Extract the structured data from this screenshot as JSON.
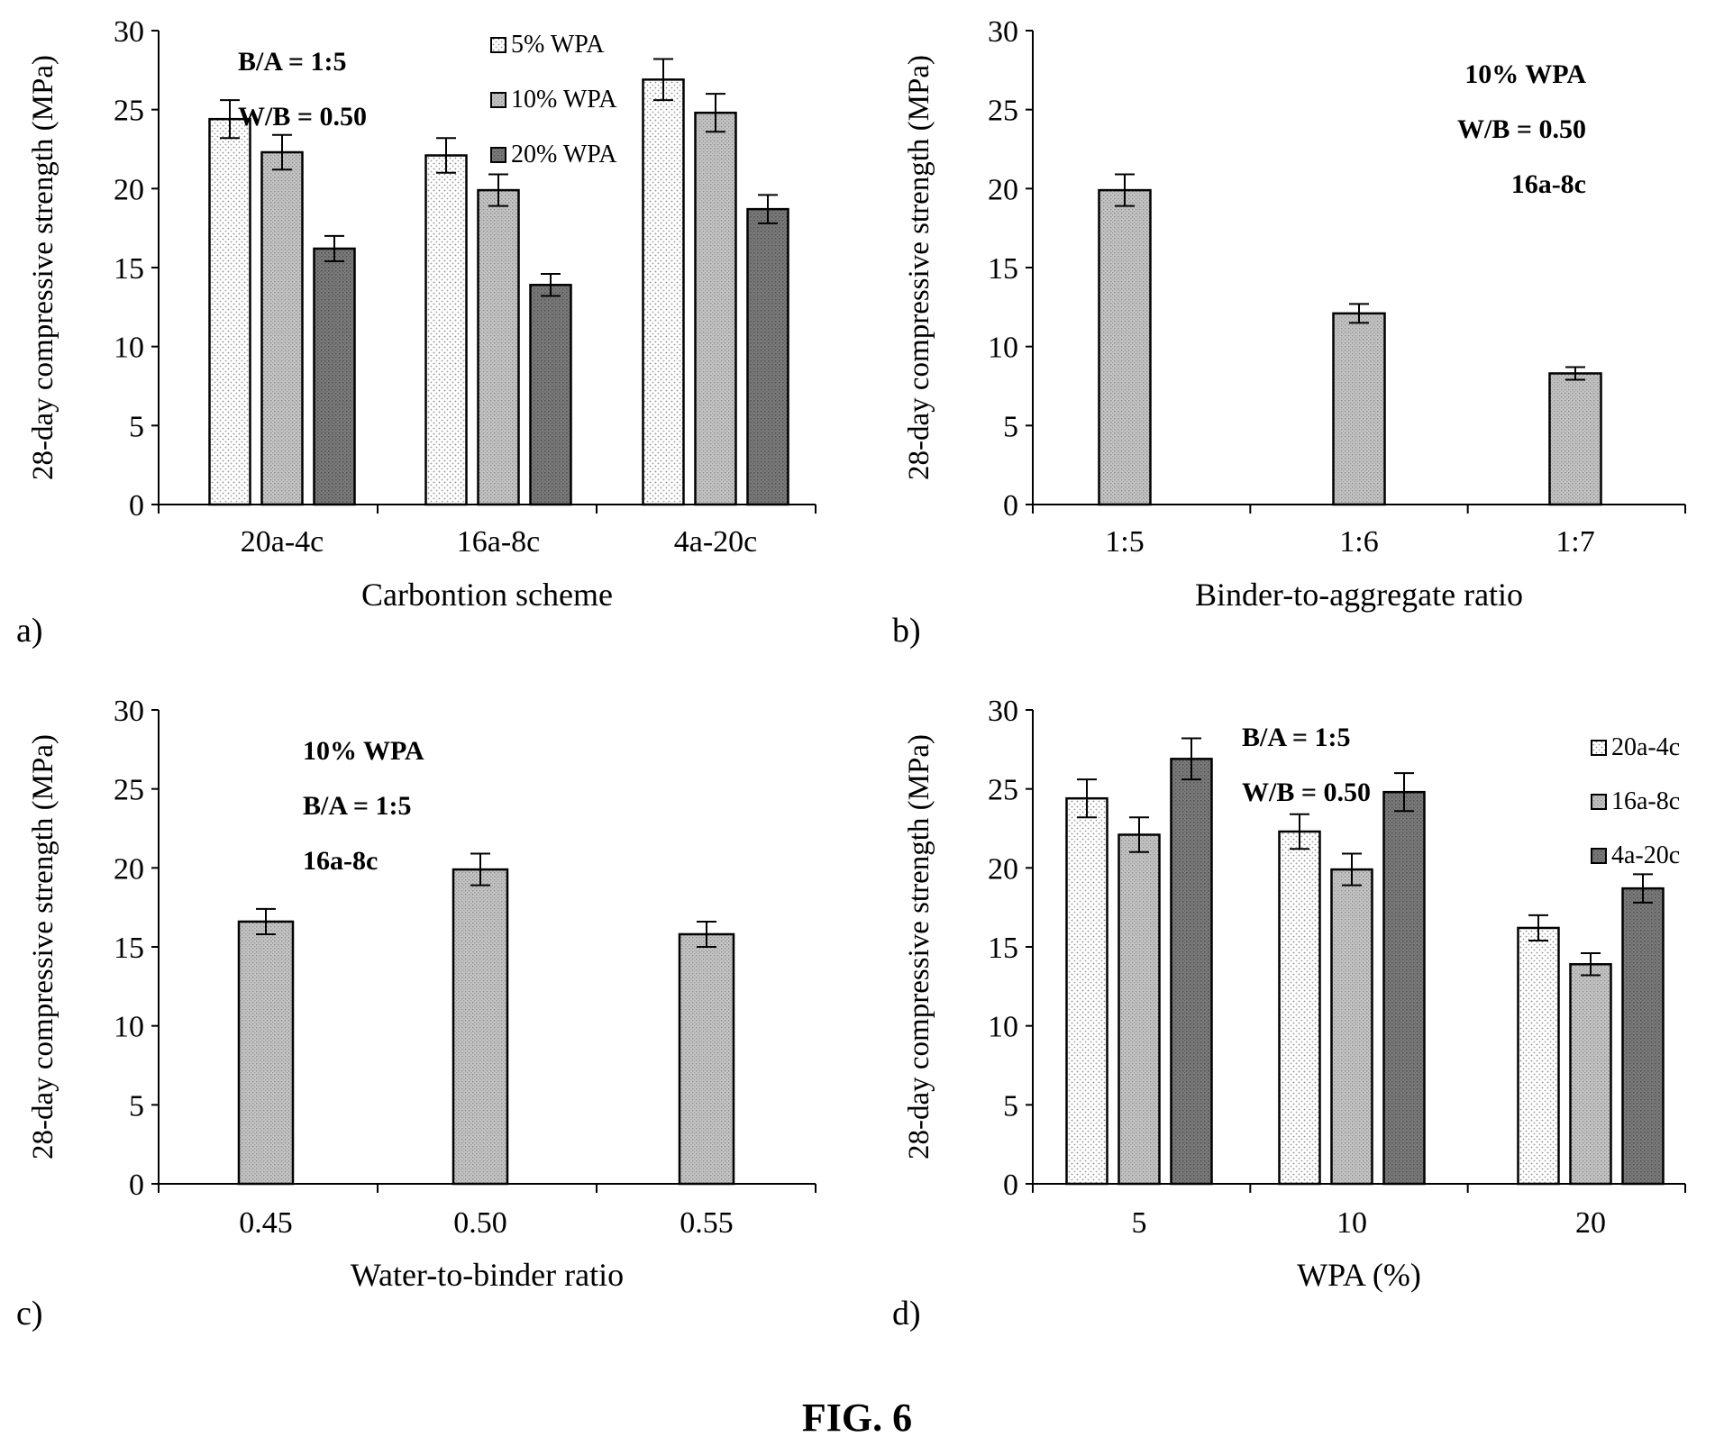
{
  "figure_caption": "FIG. 6",
  "chart_data": [
    {
      "panel_label": "a)",
      "type": "bar",
      "xlabel": "Carbontion scheme",
      "ylabel": "28-day compressive strength (MPa)",
      "ylim": [
        0,
        30
      ],
      "yticks": [
        0,
        5,
        10,
        15,
        20,
        25,
        30
      ],
      "categories": [
        "20a-4c",
        "16a-8c",
        "4a-20c"
      ],
      "series": [
        {
          "name": "5% WPA",
          "values": [
            24.4,
            22.1,
            26.9
          ],
          "errors": [
            1.2,
            1.1,
            1.3
          ],
          "fill": "dots"
        },
        {
          "name": "10% WPA",
          "values": [
            22.3,
            19.9,
            24.8
          ],
          "errors": [
            1.1,
            1.0,
            1.2
          ],
          "fill": "medium"
        },
        {
          "name": "20% WPA",
          "values": [
            16.2,
            13.9,
            18.7
          ],
          "errors": [
            0.8,
            0.7,
            0.9
          ],
          "fill": "dark"
        }
      ],
      "legend_position": "top-right",
      "annotations": [
        "B/A = 1:5",
        "W/B = 0.50"
      ]
    },
    {
      "panel_label": "b)",
      "type": "bar",
      "xlabel": "Binder-to-aggregate ratio",
      "ylabel": "28-day compressive strength (MPa)",
      "ylim": [
        0,
        30
      ],
      "yticks": [
        0,
        5,
        10,
        15,
        20,
        25,
        30
      ],
      "categories": [
        "1:5",
        "1:6",
        "1:7"
      ],
      "series": [
        {
          "values": [
            19.9,
            12.1,
            8.3
          ],
          "errors": [
            1.0,
            0.6,
            0.4
          ],
          "fill": "medium"
        }
      ],
      "annotations": [
        "10% WPA",
        "W/B = 0.50",
        "16a-8c"
      ]
    },
    {
      "panel_label": "c)",
      "type": "bar",
      "xlabel": "Water-to-binder ratio",
      "ylabel": "28-day compressive strength (MPa)",
      "ylim": [
        0,
        30
      ],
      "yticks": [
        0,
        5,
        10,
        15,
        20,
        25,
        30
      ],
      "categories": [
        "0.45",
        "0.50",
        "0.55"
      ],
      "series": [
        {
          "values": [
            16.6,
            19.9,
            15.8
          ],
          "errors": [
            0.8,
            1.0,
            0.8
          ],
          "fill": "medium"
        }
      ],
      "annotations": [
        "10% WPA",
        "B/A = 1:5",
        "16a-8c"
      ]
    },
    {
      "panel_label": "d)",
      "type": "bar",
      "xlabel": "WPA (%)",
      "ylabel": "28-day compressive strength (MPa)",
      "ylim": [
        0,
        30
      ],
      "yticks": [
        0,
        5,
        10,
        15,
        20,
        25,
        30
      ],
      "categories": [
        "5",
        "10",
        "20"
      ],
      "series": [
        {
          "name": "20a-4c",
          "values": [
            24.4,
            22.3,
            16.2
          ],
          "errors": [
            1.2,
            1.1,
            0.8
          ],
          "fill": "dots"
        },
        {
          "name": "16a-8c",
          "values": [
            22.1,
            19.9,
            13.9
          ],
          "errors": [
            1.1,
            1.0,
            0.7
          ],
          "fill": "medium"
        },
        {
          "name": "4a-20c",
          "values": [
            26.9,
            24.8,
            18.7
          ],
          "errors": [
            1.3,
            1.2,
            0.9
          ],
          "fill": "dark"
        }
      ],
      "legend_position": "top-right",
      "annotations": [
        "B/A = 1:5",
        "W/B = 0.50"
      ]
    }
  ]
}
